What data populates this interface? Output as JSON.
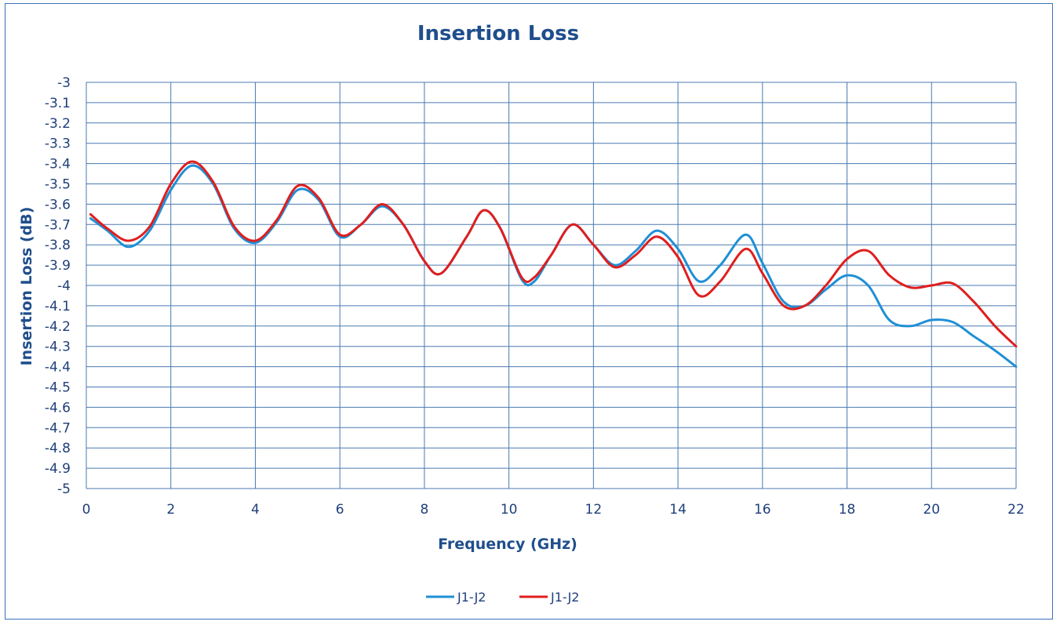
{
  "chart_data": {
    "type": "line",
    "title": "Insertion Loss",
    "xlabel": "Frequency (GHz)",
    "ylabel": "Insertion Loss (dB)",
    "xlim": [
      0,
      22
    ],
    "ylim": [
      -5,
      -3
    ],
    "x_ticks": [
      0,
      2,
      4,
      6,
      8,
      10,
      12,
      14,
      16,
      18,
      20,
      22
    ],
    "y_ticks": [
      -3,
      -3.1,
      -3.2,
      -3.3,
      -3.4,
      -3.5,
      -3.6,
      -3.7,
      -3.8,
      -3.9,
      -4,
      -4.1,
      -4.2,
      -4.3,
      -4.4,
      -4.5,
      -4.6,
      -4.7,
      -4.8,
      -4.9,
      -5
    ],
    "grid": true,
    "legend_position": "bottom",
    "series": [
      {
        "name": "J1-J2",
        "color": "#1f8fd6",
        "x": [
          0.1,
          0.5,
          1.0,
          1.5,
          2.0,
          2.5,
          3.0,
          3.5,
          4.0,
          4.5,
          5.0,
          5.5,
          6.0,
          6.5,
          7.0,
          7.5,
          8.0,
          8.4,
          9.0,
          9.4,
          9.8,
          10.3,
          10.6,
          11.0,
          11.5,
          12.0,
          12.5,
          13.0,
          13.5,
          14.0,
          14.5,
          15.0,
          15.6,
          16.0,
          16.5,
          17.0,
          17.5,
          18.0,
          18.5,
          19.0,
          19.5,
          20.0,
          20.5,
          21.0,
          21.5,
          22.0
        ],
        "values": [
          -3.67,
          -3.73,
          -3.81,
          -3.73,
          -3.53,
          -3.41,
          -3.5,
          -3.72,
          -3.79,
          -3.69,
          -3.53,
          -3.58,
          -3.76,
          -3.7,
          -3.61,
          -3.7,
          -3.88,
          -3.94,
          -3.76,
          -3.63,
          -3.72,
          -3.97,
          -3.98,
          -3.85,
          -3.7,
          -3.8,
          -3.9,
          -3.83,
          -3.73,
          -3.82,
          -3.98,
          -3.9,
          -3.75,
          -3.89,
          -4.08,
          -4.1,
          -4.02,
          -3.95,
          -4.0,
          -4.17,
          -4.2,
          -4.17,
          -4.18,
          -4.25,
          -4.32,
          -4.4
        ]
      },
      {
        "name": "J1-J2",
        "color": "#e01e1e",
        "x": [
          0.1,
          0.5,
          1.0,
          1.5,
          2.0,
          2.5,
          3.0,
          3.5,
          4.0,
          4.5,
          5.0,
          5.5,
          6.0,
          6.5,
          7.0,
          7.5,
          8.0,
          8.4,
          9.0,
          9.4,
          9.8,
          10.3,
          10.6,
          11.0,
          11.5,
          12.0,
          12.5,
          13.0,
          13.5,
          14.0,
          14.5,
          15.0,
          15.6,
          16.0,
          16.5,
          17.0,
          17.5,
          18.0,
          18.5,
          19.0,
          19.5,
          20.0,
          20.5,
          21.0,
          21.5,
          22.0
        ],
        "values": [
          -3.65,
          -3.72,
          -3.78,
          -3.71,
          -3.5,
          -3.39,
          -3.49,
          -3.71,
          -3.78,
          -3.68,
          -3.51,
          -3.57,
          -3.75,
          -3.7,
          -3.6,
          -3.7,
          -3.88,
          -3.94,
          -3.76,
          -3.63,
          -3.72,
          -3.96,
          -3.96,
          -3.85,
          -3.7,
          -3.8,
          -3.91,
          -3.85,
          -3.76,
          -3.86,
          -4.05,
          -3.98,
          -3.82,
          -3.94,
          -4.1,
          -4.1,
          -4.0,
          -3.87,
          -3.83,
          -3.95,
          -4.01,
          -4.0,
          -3.99,
          -4.08,
          -4.2,
          -4.3
        ]
      }
    ]
  }
}
